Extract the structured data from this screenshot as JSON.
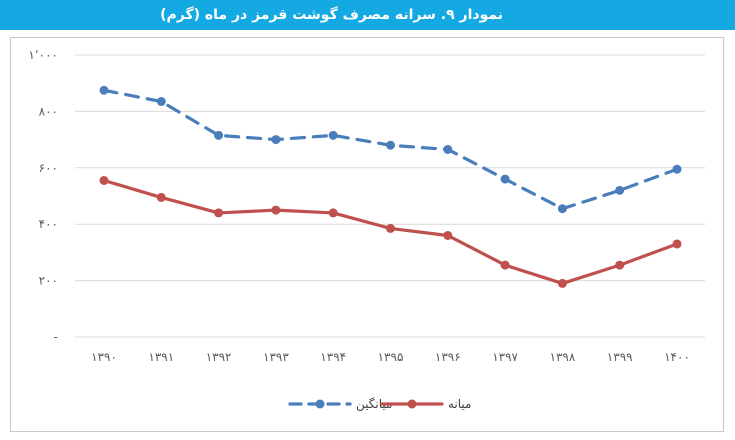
{
  "title": "نمودار ۹. سرانه مصرف گوشت قرمز در ماه (گرم)",
  "chart_data": {
    "type": "line",
    "title": "نمودار ۹. سرانه مصرف گوشت قرمز در ماه (گرم)",
    "xlabel": "",
    "ylabel": "",
    "categories": [
      "۱۳۹۰",
      "۱۳۹۱",
      "۱۳۹۲",
      "۱۳۹۳",
      "۱۳۹۴",
      "۱۳۹۵",
      "۱۳۹۶",
      "۱۳۹۷",
      "۱۳۹۸",
      "۱۳۹۹",
      "۱۴۰۰"
    ],
    "ylim": [
      0,
      1000
    ],
    "yticks": [
      0,
      200,
      400,
      600,
      800,
      1000
    ],
    "ytick_labels": [
      "-",
      "۲۰۰",
      "۴۰۰",
      "۶۰۰",
      "۸۰۰",
      "۱٬۰۰۰"
    ],
    "grid": "horizontal",
    "legend_position": "bottom",
    "series": [
      {
        "name": "میانگین",
        "style": "dashed",
        "color": "#4a7ebb",
        "values": [
          875,
          835,
          715,
          700,
          715,
          680,
          665,
          560,
          455,
          520,
          595
        ]
      },
      {
        "name": "میانه",
        "style": "solid",
        "color": "#c0504d",
        "values": [
          555,
          495,
          440,
          450,
          440,
          385,
          360,
          255,
          190,
          255,
          330
        ]
      }
    ]
  }
}
